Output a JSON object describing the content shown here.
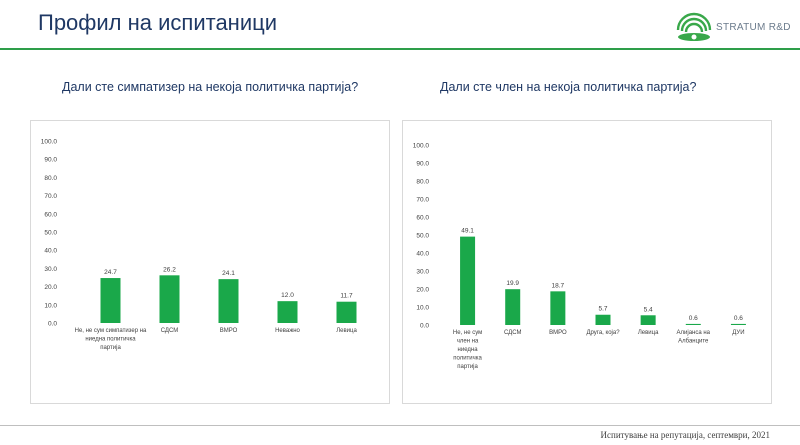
{
  "page": {
    "title": "Профил на испитаници",
    "brand": "STRATUM R&D",
    "footer": "Испитување на репутација, септември, 2021"
  },
  "colors": {
    "bar": "#1aa84a",
    "title": "#1f3864",
    "rule": "#2e9e4a"
  },
  "chart_data": [
    {
      "type": "bar",
      "title": "Дали сте симпатизер на некоја политичка партија?",
      "categories": [
        [
          "Не, не сум симпатизер на",
          "ниедна политичка",
          "партија"
        ],
        [
          "СДСМ"
        ],
        [
          "ВМРО"
        ],
        [
          "Неважно"
        ],
        [
          "Левица"
        ]
      ],
      "values": [
        24.7,
        26.2,
        24.1,
        12.0,
        11.7
      ],
      "value_labels": [
        "24.7",
        "26.2",
        "24.1",
        "12.0",
        "11.7"
      ],
      "yticks": [
        "0.0",
        "10.0",
        "20.0",
        "30.0",
        "40.0",
        "50.0",
        "60.0",
        "70.0",
        "80.0",
        "90.0",
        "100.0"
      ],
      "ylim": [
        0,
        100
      ],
      "grid": false
    },
    {
      "type": "bar",
      "title": "Дали сте член на некоја политичка партија?",
      "categories": [
        [
          "Не, не сум",
          "член на",
          "ниедна",
          "политичка",
          "партија"
        ],
        [
          "СДСМ"
        ],
        [
          "ВМРО"
        ],
        [
          "Друга, која?"
        ],
        [
          "Левица"
        ],
        [
          "Алијанса на",
          "Албанците"
        ],
        [
          "ДУИ"
        ]
      ],
      "values": [
        49.1,
        19.9,
        18.7,
        5.7,
        5.4,
        0.6,
        0.6
      ],
      "value_labels": [
        "49.1",
        "19.9",
        "18.7",
        "5.7",
        "5.4",
        "0.6",
        "0.6"
      ],
      "yticks": [
        "0.0",
        "10.0",
        "20.0",
        "30.0",
        "40.0",
        "50.0",
        "60.0",
        "70.0",
        "80.0",
        "90.0",
        "100.0"
      ],
      "ylim": [
        0,
        100
      ],
      "grid": false
    }
  ]
}
